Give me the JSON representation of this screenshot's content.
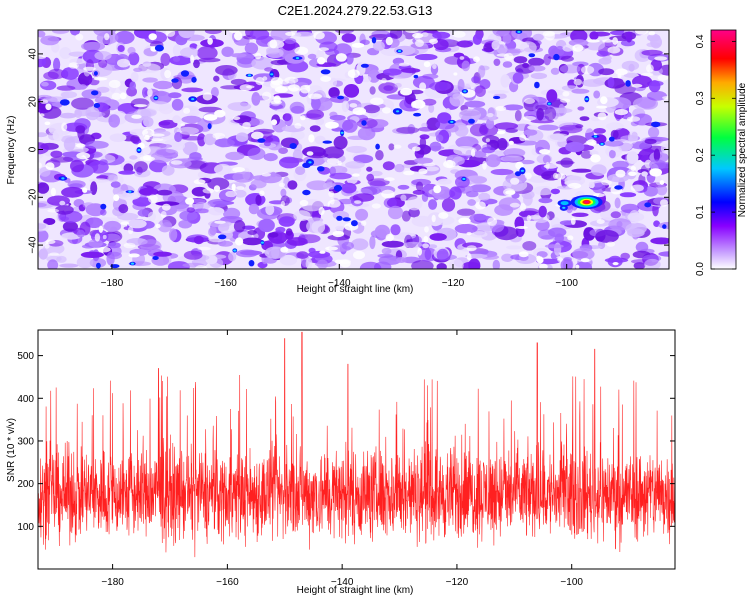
{
  "title": "C2E1.2024.279.22.53.G13",
  "chart_data": [
    {
      "type": "heatmap",
      "xlabel": "Height of straight line (km)",
      "ylabel": "Frequency (Hz)",
      "xlim": [
        -193,
        -82
      ],
      "ylim": [
        -50,
        50
      ],
      "xticks": [
        -180,
        -160,
        -140,
        -120,
        -100
      ],
      "yticks": [
        -40,
        -20,
        0,
        20,
        40
      ],
      "colorbar": {
        "label": "Normalized spectral amplitude",
        "range": [
          0,
          0.42
        ],
        "ticks": [
          0,
          0.1,
          0.2,
          0.3,
          0.4
        ],
        "tick_labels": [
          "0.0",
          "0.1",
          "0.2",
          "0.3",
          "0.4"
        ],
        "colors": [
          "#ffffff",
          "#8800ff",
          "#0000ff",
          "#00ffff",
          "#00ff00",
          "#ffff00",
          "#ff0000",
          "#ff0088"
        ]
      },
      "peak": {
        "x": -96.5,
        "y": -22,
        "value": 0.38
      },
      "background_level": 0.05
    },
    {
      "type": "line",
      "xlabel": "Height of straight line (km)",
      "ylabel": "SNR (10 * v/v)",
      "xlim": [
        -193,
        -82
      ],
      "ylim": [
        0,
        560
      ],
      "xticks": [
        -180,
        -160,
        -140,
        -120,
        -100
      ],
      "yticks": [
        100,
        200,
        300,
        400,
        500
      ],
      "color": "#ff2020",
      "noise": {
        "mean": 175,
        "spread": 110,
        "min": 20,
        "max": 555
      },
      "notable_peaks": [
        {
          "x": -147,
          "y": 555
        },
        {
          "x": -150,
          "y": 540
        },
        {
          "x": -106,
          "y": 530
        },
        {
          "x": -96,
          "y": 515
        },
        {
          "x": -172,
          "y": 470
        },
        {
          "x": -139,
          "y": 480
        }
      ]
    }
  ]
}
